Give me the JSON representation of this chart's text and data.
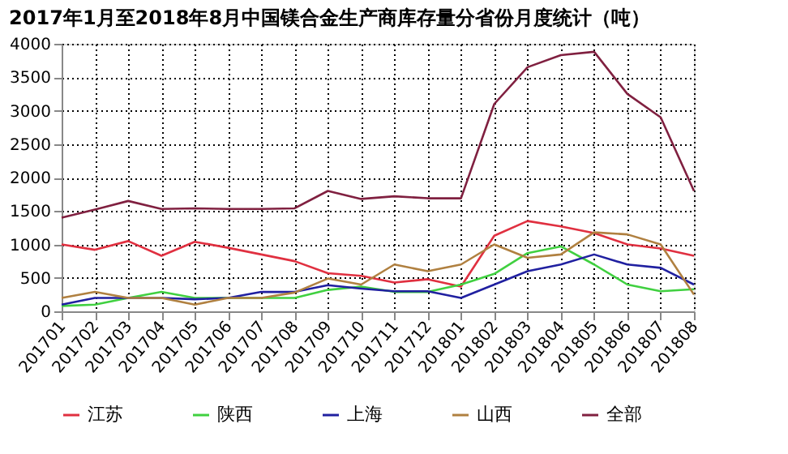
{
  "chart_data": {
    "type": "line",
    "title": "2017年1月至2018年8月中国镁合金生产商库存量分省份月度统计（吨）",
    "categories": [
      "201701",
      "201702",
      "201703",
      "201704",
      "201705",
      "201706",
      "201707",
      "201708",
      "201709",
      "201710",
      "201711",
      "201712",
      "201801",
      "201802",
      "201803",
      "201804",
      "201805",
      "201806",
      "201807",
      "201808"
    ],
    "series": [
      {
        "name": "江苏",
        "color": "#e03040",
        "values": [
          1000,
          920,
          1050,
          830,
          1040,
          950,
          850,
          750,
          570,
          530,
          430,
          480,
          370,
          1130,
          1350,
          1270,
          1170,
          1000,
          940,
          830
        ]
      },
      {
        "name": "陕西",
        "color": "#40d040",
        "values": [
          80,
          100,
          200,
          290,
          200,
          200,
          200,
          200,
          320,
          370,
          290,
          290,
          400,
          560,
          870,
          970,
          700,
          400,
          300,
          330
        ]
      },
      {
        "name": "上海",
        "color": "#2020a0",
        "values": [
          100,
          200,
          200,
          200,
          180,
          200,
          290,
          290,
          390,
          340,
          300,
          300,
          200,
          400,
          600,
          700,
          850,
          700,
          650,
          400
        ]
      },
      {
        "name": "山西",
        "color": "#b08040",
        "values": [
          200,
          290,
          200,
          200,
          100,
          200,
          200,
          280,
          490,
          400,
          700,
          600,
          700,
          1000,
          800,
          850,
          1180,
          1150,
          1000,
          250
        ]
      },
      {
        "name": "全部",
        "color": "#802040",
        "values": [
          1400,
          1520,
          1650,
          1530,
          1540,
          1530,
          1530,
          1540,
          1800,
          1680,
          1720,
          1690,
          1690,
          3100,
          3650,
          3830,
          3880,
          3250,
          2900,
          1800
        ]
      }
    ],
    "ylim": [
      0,
      4000
    ],
    "yticks": [
      0,
      500,
      1000,
      1500,
      2000,
      2500,
      3000,
      3500,
      4000
    ],
    "grid": true,
    "legend": "bottom",
    "marker": "none",
    "line_style": "solid"
  }
}
